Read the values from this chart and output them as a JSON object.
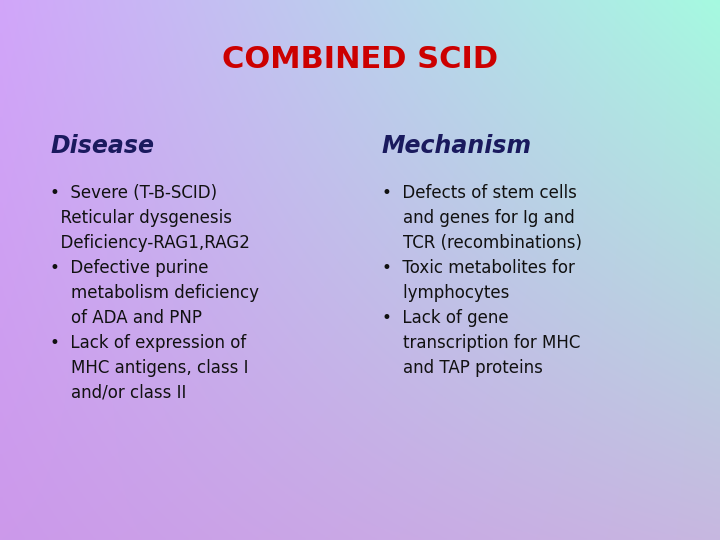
{
  "title": "COMBINED SCID",
  "title_color": "#cc0000",
  "title_fontsize": 22,
  "left_header": "Disease",
  "right_header": "Mechanism",
  "header_fontsize": 17,
  "header_color": "#1a1a5e",
  "body_fontsize": 12,
  "body_color": "#111111",
  "figsize": [
    7.2,
    5.4
  ],
  "dpi": 100,
  "grad_topleft": [
    0.82,
    0.65,
    0.98
  ],
  "grad_topright": [
    0.65,
    0.98,
    0.88
  ],
  "grad_botleft": [
    0.8,
    0.6,
    0.92
  ],
  "grad_botright": [
    0.78,
    0.72,
    0.88
  ]
}
